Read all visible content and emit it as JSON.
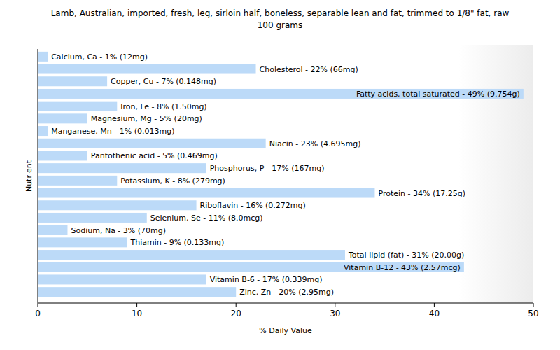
{
  "chart_data": {
    "type": "bar",
    "orientation": "horizontal",
    "title": "Lamb, Australian, imported, fresh, leg, sirloin half, boneless, separable lean and fat, trimmed to 1/8\" fat, raw",
    "subtitle": "100 grams",
    "x_label": "% Daily Value",
    "y_label": "Nutrient",
    "categories": [
      "Calcium, Ca - 1% (12mg)",
      "Cholesterol - 22% (66mg)",
      "Copper, Cu - 7% (0.148mg)",
      "Fatty acids, total saturated - 49% (9.754g)",
      "Iron, Fe - 8% (1.50mg)",
      "Magnesium, Mg - 5% (20mg)",
      "Manganese, Mn - 1% (0.013mg)",
      "Niacin - 23% (4.695mg)",
      "Pantothenic acid - 5% (0.469mg)",
      "Phosphorus, P - 17% (167mg)",
      "Potassium, K - 8% (279mg)",
      "Protein - 34% (17.25g)",
      "Riboflavin - 16% (0.272mg)",
      "Selenium, Se - 11% (8.0mcg)",
      "Sodium, Na - 3% (70mg)",
      "Thiamin - 9% (0.133mg)",
      "Total lipid (fat) - 31% (20.00g)",
      "Vitamin B-12 - 43% (2.57mcg)",
      "Vitamin B-6 - 17% (0.339mg)",
      "Zinc, Zn - 20% (2.95mg)"
    ],
    "values": [
      1,
      22,
      7,
      49,
      8,
      5,
      1,
      23,
      5,
      17,
      8,
      34,
      16,
      11,
      3,
      9,
      31,
      43,
      17,
      20
    ],
    "color": "#bcdaf8",
    "xlim": [
      0,
      50
    ],
    "xticks": [
      0,
      10,
      20,
      30,
      40,
      50
    ],
    "grid": false
  }
}
